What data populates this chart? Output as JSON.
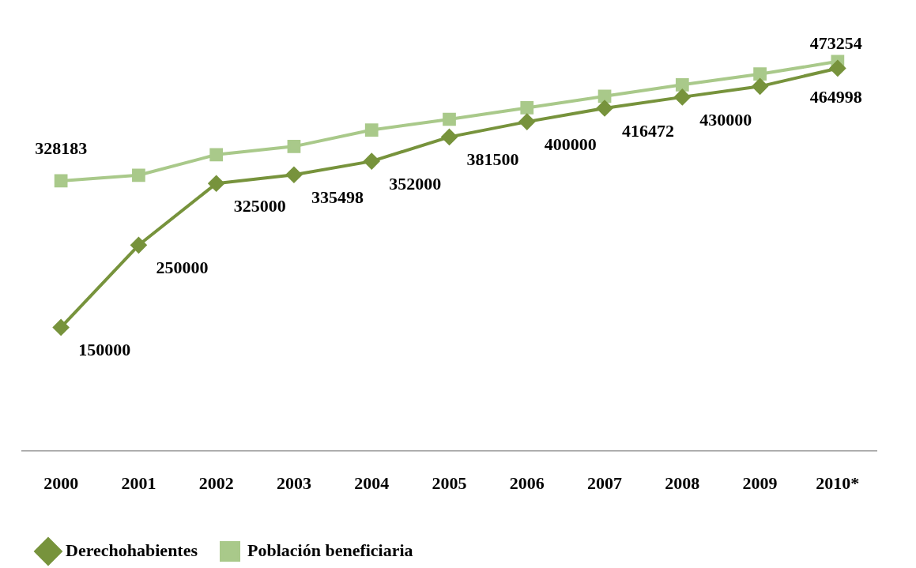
{
  "chart_data": {
    "type": "line",
    "categories": [
      "2000",
      "2001",
      "2002",
      "2003",
      "2004",
      "2005",
      "2006",
      "2007",
      "2008",
      "2009",
      "2010*"
    ],
    "series": [
      {
        "name": "Derechohabientes",
        "color": "#77933c",
        "marker": "diamond",
        "values": [
          150000,
          250000,
          325000,
          335498,
          352000,
          381500,
          400000,
          416472,
          430000,
          443000,
          464998
        ],
        "value_labels": [
          "150000",
          "250000",
          "325000",
          "335498",
          "352000",
          "381500",
          "400000",
          "416472",
          "430000",
          null,
          "464998"
        ]
      },
      {
        "name": "Población beneficiaria",
        "color": "#a9c98a",
        "marker": "square",
        "values": [
          328183,
          335000,
          360000,
          370000,
          390000,
          403000,
          417000,
          431000,
          445000,
          458000,
          473254
        ],
        "value_labels": [
          "328183",
          null,
          null,
          null,
          null,
          null,
          null,
          null,
          null,
          null,
          "473254"
        ]
      }
    ],
    "tick_labels": "x",
    "legend": "bottom left",
    "line_style": "solid"
  }
}
